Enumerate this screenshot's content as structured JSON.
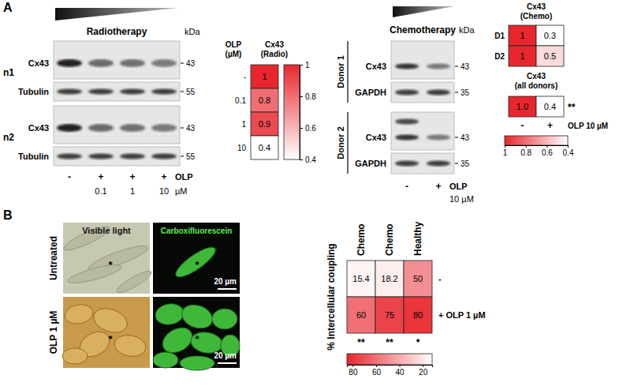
{
  "figure": {
    "panel_a": {
      "letter": "A",
      "radiotherapy": {
        "title": "Radiotherapy",
        "kda": "kDa",
        "replicates": [
          {
            "name": "n1",
            "rows": [
              {
                "label": "Cx43",
                "marker": 43
              },
              {
                "label": "Tubulin",
                "marker": 55
              }
            ]
          },
          {
            "name": "n2",
            "rows": [
              {
                "label": "Cx43",
                "marker": 43
              },
              {
                "label": "Tubulin",
                "marker": 55
              }
            ]
          }
        ],
        "lane_signs": [
          "-",
          "+",
          "+",
          "+"
        ],
        "lane_doses": [
          0.1,
          1,
          10
        ],
        "treatment": "OLP",
        "unit": "µM"
      },
      "chemotherapy": {
        "title": "Chemotherapy",
        "kda": "kDa",
        "donors": [
          {
            "name": "Donor 1",
            "rows": [
              {
                "label": "Cx43",
                "marker": 43
              },
              {
                "label": "GAPDH",
                "marker": 35
              }
            ]
          },
          {
            "name": "Donor 2",
            "rows": [
              {
                "label": "Cx43",
                "marker": 43
              },
              {
                "label": "GAPDH",
                "marker": 35
              }
            ]
          }
        ],
        "lane_signs": [
          "-",
          "+"
        ],
        "treatment": "OLP",
        "dose": "10 µM"
      }
    },
    "panel_b": {
      "letter": "B",
      "rows": [
        "Untreated",
        "OLP 1 µM"
      ],
      "columns": [
        "Visible light",
        "Carboxifluorescein"
      ],
      "scale_bar": "20 µm",
      "cell_mark": "*"
    }
  },
  "chart_data": [
    {
      "type": "heatmap",
      "title": "Cx43 (Radio)",
      "y_label": "OLP (µM)",
      "rows": [
        "-",
        "0.1",
        "1",
        "10"
      ],
      "values": [
        [
          1
        ],
        [
          0.8
        ],
        [
          0.9
        ],
        [
          0.4
        ]
      ],
      "data_labels": true,
      "colorbar": {
        "range": [
          0.4,
          1
        ],
        "ticks": [
          1,
          0.8,
          0.6,
          0.4
        ]
      }
    },
    {
      "type": "heatmap",
      "title": "Cx43 (Chemo)",
      "rows": [
        "D1",
        "D2"
      ],
      "values": [
        [
          1,
          0.3
        ],
        [
          1,
          0.5
        ]
      ],
      "data_labels": true
    },
    {
      "type": "heatmap",
      "title": "Cx43 (all donors)",
      "columns": [
        "-",
        "+"
      ],
      "column_title": "OLP 10 µM",
      "values": [
        [
          1.0,
          0.4
        ]
      ],
      "value_labels": [
        [
          "1.0",
          "0.4"
        ]
      ],
      "data_labels": true,
      "significance": "**",
      "colorbar": {
        "range": [
          0.4,
          1
        ],
        "ticks": [
          1,
          0.8,
          0.6,
          0.4
        ]
      }
    },
    {
      "type": "heatmap",
      "y_label": "% Intercellular coupling",
      "columns": [
        "Chemo",
        "Chemo",
        "Healthy"
      ],
      "rows": [
        "-",
        "+ OLP 1 µM"
      ],
      "values": [
        [
          15.4,
          18.2,
          50
        ],
        [
          60,
          75,
          80
        ]
      ],
      "data_labels": true,
      "significance": [
        "**",
        "**",
        "*"
      ],
      "colorbar": {
        "range": [
          12,
          85
        ],
        "ticks": [
          80,
          60,
          40,
          20
        ]
      }
    }
  ]
}
